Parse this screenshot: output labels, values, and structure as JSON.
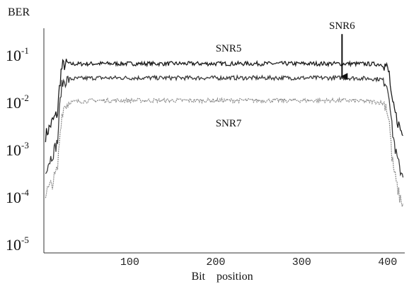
{
  "chart_data": {
    "type": "line",
    "title": "",
    "xlabel": "Bit    position",
    "ylabel": "BER",
    "y_scale": "log",
    "xlim": [
      0,
      420
    ],
    "ylim": [
      1e-05,
      0.1
    ],
    "x_ticks": [
      100,
      200,
      300,
      400
    ],
    "y_ticks": [
      {
        "value": 0.1,
        "base": "10",
        "exp": "-1"
      },
      {
        "value": 0.01,
        "base": "10",
        "exp": "-2"
      },
      {
        "value": 0.001,
        "base": "10",
        "exp": "-3"
      },
      {
        "value": 0.0001,
        "base": "10",
        "exp": "-4"
      },
      {
        "value": 1e-05,
        "base": "10",
        "exp": "-5"
      }
    ],
    "grid": false,
    "legend": "none",
    "series": [
      {
        "name": "SNR5",
        "color": "#1a1a1a",
        "x": [
          2,
          10,
          16,
          18,
          20,
          22,
          25,
          30,
          40,
          60,
          100,
          150,
          200,
          250,
          300,
          350,
          380,
          392,
          398,
          402,
          405,
          410,
          414,
          418
        ],
        "y": [
          0.002,
          0.004,
          0.006,
          0.02,
          0.045,
          0.06,
          0.063,
          0.065,
          0.065,
          0.066,
          0.066,
          0.066,
          0.066,
          0.066,
          0.066,
          0.066,
          0.065,
          0.064,
          0.06,
          0.04,
          0.01,
          0.005,
          0.003,
          0.002
        ]
      },
      {
        "name": "SNR6",
        "color": "#3a3a3a",
        "x": [
          2,
          10,
          16,
          18,
          20,
          22,
          25,
          30,
          40,
          60,
          100,
          150,
          200,
          250,
          300,
          350,
          380,
          392,
          398,
          402,
          405,
          410,
          414,
          418
        ],
        "y": [
          0.0004,
          0.0008,
          0.0015,
          0.006,
          0.018,
          0.026,
          0.029,
          0.031,
          0.032,
          0.033,
          0.033,
          0.033,
          0.033,
          0.033,
          0.033,
          0.033,
          0.032,
          0.031,
          0.028,
          0.015,
          0.003,
          0.0008,
          0.0004,
          0.0003
        ]
      },
      {
        "name": "SNR7",
        "color": "#888888",
        "x": [
          2,
          10,
          16,
          18,
          20,
          22,
          25,
          30,
          40,
          60,
          100,
          150,
          200,
          250,
          300,
          350,
          380,
          392,
          398,
          402,
          405,
          410,
          414,
          418
        ],
        "y": [
          0.00012,
          0.0002,
          0.0004,
          0.0015,
          0.004,
          0.007,
          0.009,
          0.01,
          0.0105,
          0.011,
          0.011,
          0.011,
          0.011,
          0.011,
          0.011,
          0.011,
          0.0105,
          0.01,
          0.009,
          0.004,
          0.0007,
          0.0002,
          0.0001,
          7e-05
        ]
      }
    ],
    "annotations": [
      {
        "text": "SNR5",
        "x": 215,
        "y": 0.14
      },
      {
        "text": "SNR6",
        "x": 347,
        "y": 0.42
      },
      {
        "text": "SNR7",
        "x": 215,
        "y": 0.0037
      }
    ]
  }
}
